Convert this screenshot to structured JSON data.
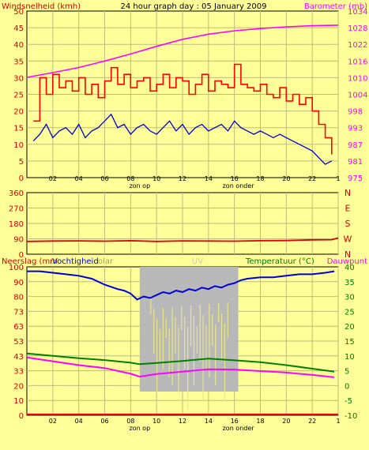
{
  "colors": {
    "background": "#ffff99",
    "plot_bg": "#ffff99",
    "grid": "#bdbd7a",
    "wind_max": "#ff0000",
    "wind_avg": "#0000cc",
    "barometer": "#ff00ff",
    "direction": "#dd0000",
    "rain": "#ff0000",
    "humidity": "#0000dd",
    "solar": "#b8b8b8",
    "uv": "#e6e68c",
    "temperature": "#008000",
    "dewpoint": "#ff00ff",
    "left_axis_text": "#d00000",
    "right_axis_baro": "#ff00ff",
    "right_axis_dir": "#d00000",
    "right_axis_temp": "#007a00",
    "dark_text": "#000000"
  },
  "chart_data": [
    {
      "type": "line",
      "title": "24 hour graph day : 05 January 2009",
      "ylabel_left": "Windsnelheid (kmh)",
      "ylabel_right": "Barometer (mb)",
      "x_ticks": [
        "02",
        "04",
        "06",
        "08",
        "10",
        "12",
        "14",
        "16",
        "18",
        "20",
        "22",
        "1"
      ],
      "x_annotations": [
        "zon op",
        "zon onder"
      ],
      "x_annotation_hours": [
        8.7,
        16.3
      ],
      "y_left_ticks": [
        0,
        5,
        10,
        15,
        20,
        25,
        30,
        35,
        40,
        45,
        50
      ],
      "y_right_ticks": [
        "975",
        "981",
        "987",
        "993",
        "998",
        "1004",
        "1010",
        "1016",
        "1022",
        "1028",
        "1034"
      ],
      "ylim_left": [
        0,
        50
      ],
      "ylim_right": [
        975,
        1034
      ],
      "series": [
        {
          "key": "wind_max",
          "x": [
            0.5,
            1,
            1.5,
            2,
            2.5,
            3,
            3.5,
            4,
            4.5,
            5,
            5.5,
            6,
            6.5,
            7,
            7.5,
            8,
            8.5,
            9,
            9.5,
            10,
            10.5,
            11,
            11.5,
            12,
            12.5,
            13,
            13.5,
            14,
            14.5,
            15,
            15.5,
            16,
            16.5,
            17,
            17.5,
            18,
            18.5,
            19,
            19.5,
            20,
            20.5,
            21,
            21.5,
            22,
            22.5,
            23,
            23.5
          ],
          "y": [
            17,
            30,
            25,
            31,
            27,
            29,
            26,
            30,
            25,
            28,
            24,
            29,
            33,
            28,
            31,
            27,
            29,
            30,
            26,
            28,
            31,
            27,
            30,
            29,
            25,
            28,
            31,
            26,
            29,
            28,
            27,
            34,
            28,
            27,
            26,
            28,
            25,
            24,
            27,
            23,
            25,
            22,
            24,
            20,
            16,
            12,
            7
          ]
        },
        {
          "key": "wind_avg",
          "x": [
            0.5,
            1,
            1.5,
            2,
            2.5,
            3,
            3.5,
            4,
            4.5,
            5,
            5.5,
            6,
            6.5,
            7,
            7.5,
            8,
            8.5,
            9,
            9.5,
            10,
            10.5,
            11,
            11.5,
            12,
            12.5,
            13,
            13.5,
            14,
            14.5,
            15,
            15.5,
            16,
            16.5,
            17,
            17.5,
            18,
            18.5,
            19,
            19.5,
            20,
            20.5,
            21,
            21.5,
            22,
            22.5,
            23,
            23.5
          ],
          "y": [
            11,
            13,
            16,
            12,
            14,
            15,
            13,
            16,
            12,
            14,
            15,
            17,
            19,
            15,
            16,
            13,
            15,
            16,
            14,
            13,
            15,
            17,
            14,
            16,
            13,
            15,
            16,
            14,
            15,
            16,
            14,
            17,
            15,
            14,
            13,
            14,
            13,
            12,
            13,
            12,
            11,
            10,
            9,
            8,
            6,
            4,
            5
          ]
        },
        {
          "key": "barometer",
          "x": [
            0,
            2,
            4,
            6,
            8,
            10,
            12,
            14,
            16,
            18,
            20,
            22,
            24
          ],
          "y": [
            1010.5,
            1012.2,
            1014.0,
            1016.3,
            1018.8,
            1021.5,
            1024.0,
            1025.8,
            1027.0,
            1027.8,
            1028.4,
            1028.8,
            1029.0
          ]
        }
      ]
    },
    {
      "type": "line",
      "y_left_ticks": [
        0,
        90,
        180,
        270,
        360
      ],
      "ylim": [
        0,
        360
      ],
      "right_labels": [
        "N",
        "W",
        "S",
        "E",
        "N"
      ],
      "series": [
        {
          "key": "direction",
          "x": [
            0,
            2,
            4,
            6,
            8,
            10,
            12,
            14,
            16,
            18,
            20,
            22,
            23.5,
            24
          ],
          "y": [
            75,
            77,
            78,
            76,
            79,
            75,
            78,
            77,
            76,
            79,
            80,
            84,
            85,
            95
          ]
        }
      ]
    },
    {
      "type": "line",
      "ylabel_left": "Neerslag (mm",
      "ylabel_left_2": "Vochtigheid",
      "legend_solar": "olar",
      "legend_uv": "UV",
      "ylabel_right": "Temperatuur (°C)",
      "ylabel_right_2": "Dauwpunt",
      "x_ticks": [
        "02",
        "04",
        "06",
        "08",
        "10",
        "12",
        "14",
        "16",
        "18",
        "20",
        "22",
        "1"
      ],
      "x_annotations": [
        "zon op",
        "zon onder"
      ],
      "x_annotation_hours": [
        8.7,
        16.3
      ],
      "y_left_ticks": [
        "0",
        "10",
        "20",
        "33",
        "43",
        "53",
        "63",
        "73",
        "80",
        "90",
        "100"
      ],
      "y_right_ticks": [
        "-10",
        "-5",
        "0",
        "5",
        "10",
        "15",
        "20",
        "25",
        "30",
        "35",
        "40"
      ],
      "ylim_left": [
        0,
        100
      ],
      "ylim_right": [
        -10,
        40
      ],
      "solar_band": [
        8.7,
        16.3
      ],
      "series": [
        {
          "key": "humidity",
          "x": [
            0,
            1,
            2,
            3,
            4,
            5,
            6,
            7,
            7.5,
            8,
            8.5,
            9,
            9.5,
            10,
            10.5,
            11,
            11.5,
            12,
            12.5,
            13,
            13.5,
            14,
            14.5,
            15,
            15.5,
            16,
            16.5,
            17,
            18,
            19,
            20,
            21,
            22,
            23,
            23.7
          ],
          "y": [
            97,
            97,
            96,
            95,
            94,
            92,
            88,
            85,
            84,
            82,
            78,
            80,
            79,
            81,
            83,
            82,
            84,
            83,
            85,
            84,
            86,
            85,
            87,
            86,
            88,
            89,
            91,
            92,
            93,
            93,
            94,
            95,
            95,
            96,
            97
          ]
        },
        {
          "key": "temperature",
          "x": [
            0,
            2,
            4,
            6,
            8,
            8.7,
            10,
            12,
            14,
            16,
            18,
            20,
            22,
            23.7
          ],
          "y": [
            10.8,
            10.0,
            9.2,
            8.6,
            7.7,
            7.2,
            7.6,
            8.3,
            9.1,
            8.5,
            7.9,
            6.9,
            5.7,
            4.7
          ]
        },
        {
          "key": "dewpoint",
          "x": [
            0,
            2,
            4,
            6,
            8,
            8.7,
            10,
            12,
            14,
            16,
            18,
            20,
            22,
            23.7
          ],
          "y": [
            9.5,
            8.2,
            6.9,
            5.9,
            4.0,
            3.0,
            3.9,
            4.7,
            5.5,
            5.4,
            4.9,
            4.4,
            3.6,
            2.8
          ]
        },
        {
          "key": "rain",
          "x": [
            0,
            24
          ],
          "y": [
            0.6,
            0.6
          ]
        }
      ]
    }
  ]
}
